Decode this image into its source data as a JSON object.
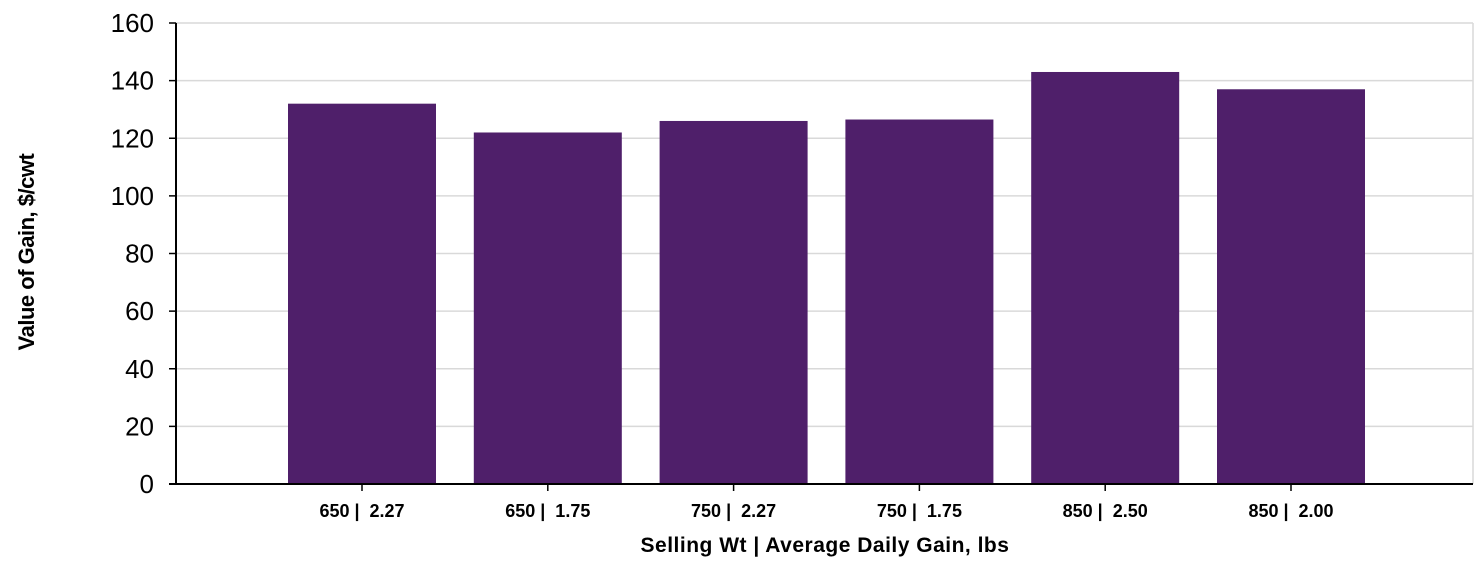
{
  "chart_data": {
    "type": "bar",
    "title": "",
    "xlabel": "Selling Wt | Average Daily Gain, lbs",
    "ylabel": "Value of Gain, $/cwt",
    "categories": [
      "650 |  2.27",
      "650 |  1.75",
      "750 |  2.27",
      "750 |  1.75",
      "850 |  2.50",
      "850 |  2.00"
    ],
    "values": [
      132,
      122,
      126,
      126.5,
      143,
      137
    ],
    "ylim": [
      0,
      160
    ],
    "yticks": [
      0,
      20,
      40,
      60,
      80,
      100,
      120,
      140,
      160
    ],
    "grid": true,
    "legend": "none"
  },
  "colors": {
    "bar": "#4f1f6a",
    "grid": "#d9d9d9",
    "axis": "#000000"
  }
}
